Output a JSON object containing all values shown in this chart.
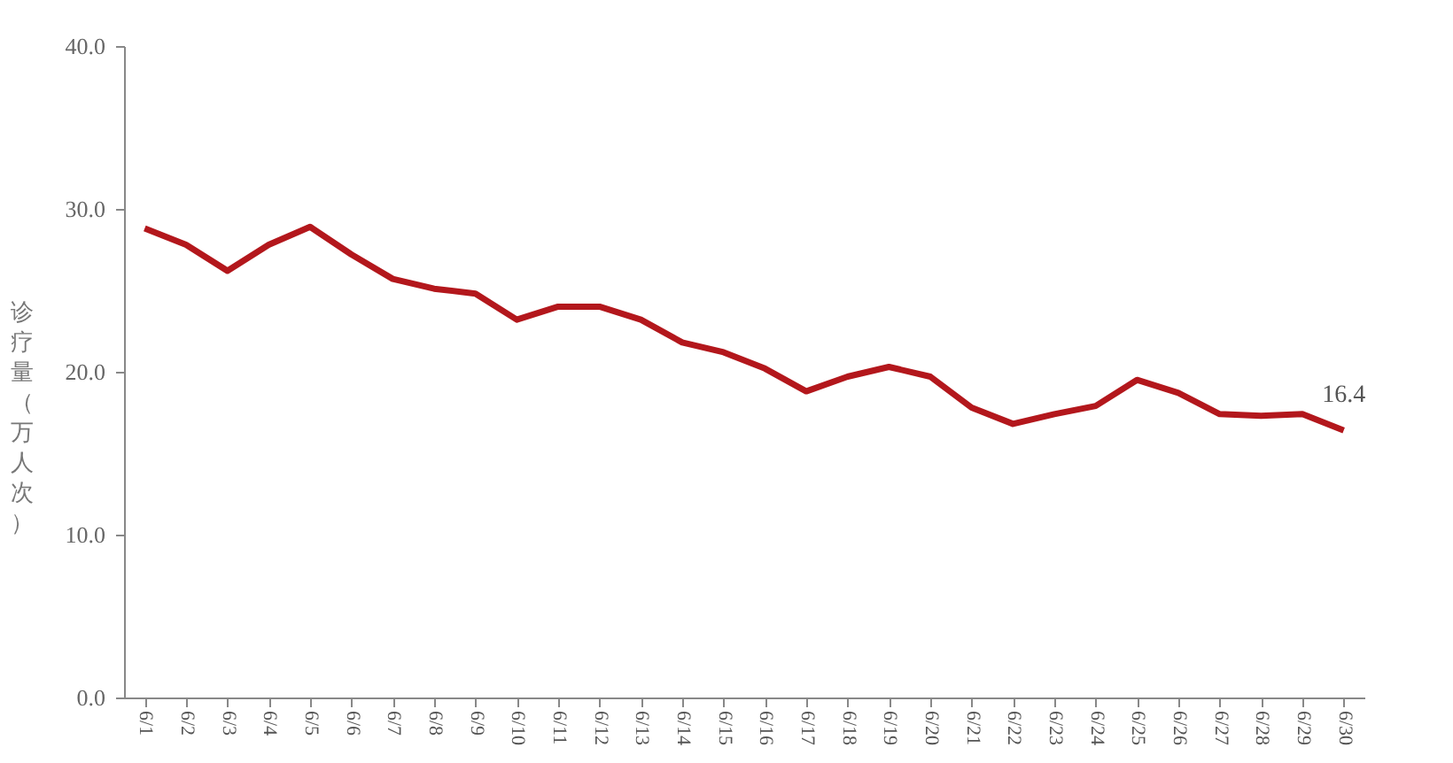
{
  "chart_data": {
    "type": "line",
    "ylabel": "诊疗量（万人次）",
    "categories": [
      "6/1",
      "6/2",
      "6/3",
      "6/4",
      "6/5",
      "6/6",
      "6/7",
      "6/8",
      "6/9",
      "6/10",
      "6/11",
      "6/12",
      "6/13",
      "6/14",
      "6/15",
      "6/16",
      "6/17",
      "6/18",
      "6/19",
      "6/20",
      "6/21",
      "6/22",
      "6/23",
      "6/24",
      "6/25",
      "6/26",
      "6/27",
      "6/28",
      "6/29",
      "6/30"
    ],
    "series": [
      {
        "color": "#b3171c",
        "values": [
          28.8,
          27.8,
          26.2,
          27.8,
          28.9,
          27.2,
          25.7,
          25.1,
          24.8,
          23.2,
          24.0,
          24.0,
          23.2,
          21.8,
          21.2,
          20.2,
          18.8,
          19.7,
          20.3,
          19.7,
          17.8,
          16.8,
          17.4,
          17.9,
          19.5,
          18.7,
          17.4,
          17.3,
          17.4,
          16.4
        ],
        "value_labels": [
          null,
          null,
          null,
          null,
          null,
          null,
          null,
          null,
          null,
          null,
          null,
          null,
          null,
          null,
          null,
          null,
          null,
          null,
          null,
          null,
          null,
          null,
          null,
          null,
          null,
          null,
          null,
          null,
          null,
          "16.4"
        ]
      }
    ],
    "ylim": [
      0,
      40
    ],
    "yticks": [
      {
        "value": 0,
        "label": "0.0"
      },
      {
        "value": 10,
        "label": "10.0"
      },
      {
        "value": 20,
        "label": "20.0"
      },
      {
        "value": 30,
        "label": "30.0"
      },
      {
        "value": 40,
        "label": "40.0"
      }
    ],
    "grid": false,
    "marker": "none",
    "line_style": "solid"
  }
}
